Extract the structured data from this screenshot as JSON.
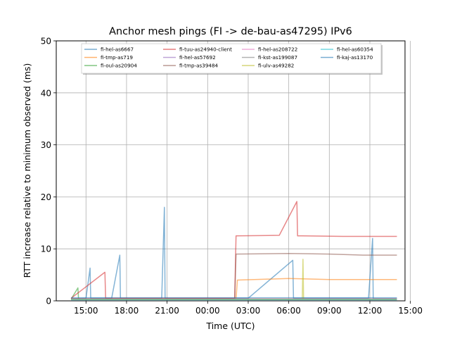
{
  "chart_data": {
    "type": "line",
    "title": "Anchor mesh pings (FI -> de-bau-as47295) IPv6",
    "xlabel": "Time (UTC)",
    "ylabel": "RTT increase relative to minimum observed (ms)",
    "x_unit": "hours after 00:00 UTC on the first day",
    "xlim": [
      12.8,
      38.6
    ],
    "ylim": [
      0,
      50
    ],
    "xticks": [
      {
        "value": 15,
        "label": "15:00"
      },
      {
        "value": 18,
        "label": "18:00"
      },
      {
        "value": 21,
        "label": "21:00"
      },
      {
        "value": 24,
        "label": "00:00"
      },
      {
        "value": 27,
        "label": "03:00"
      },
      {
        "value": 30,
        "label": "06:00"
      },
      {
        "value": 33,
        "label": "09:00"
      },
      {
        "value": 36,
        "label": "12:00"
      },
      {
        "value": 39,
        "label": "15:00"
      }
    ],
    "yticks": [
      0,
      10,
      20,
      30,
      40,
      50
    ],
    "grid": true,
    "legend_position": "top-center",
    "legend_columns": 4,
    "series": [
      {
        "name": "fi-hel-as6667",
        "color": "#1f77b4",
        "points": [
          [
            13.9,
            0.4
          ],
          [
            15.0,
            0.5
          ],
          [
            15.3,
            6.3
          ],
          [
            15.35,
            0.5
          ],
          [
            16.9,
            0.5
          ],
          [
            17.5,
            8.8
          ],
          [
            17.55,
            0.5
          ],
          [
            20.6,
            0.5
          ],
          [
            20.8,
            18.0
          ],
          [
            20.85,
            0.5
          ],
          [
            27.0,
            0.5
          ],
          [
            30.3,
            7.8
          ],
          [
            30.35,
            0.5
          ],
          [
            35.9,
            0.5
          ],
          [
            36.2,
            12.0
          ],
          [
            36.25,
            0.4
          ],
          [
            38.0,
            0.4
          ]
        ]
      },
      {
        "name": "fi-tmp-as719",
        "color": "#ff7f0e",
        "points": [
          [
            13.9,
            0.3
          ],
          [
            26.1,
            0.3
          ],
          [
            26.2,
            4.0
          ],
          [
            30.0,
            4.3
          ],
          [
            33.0,
            4.1
          ],
          [
            38.0,
            4.1
          ]
        ]
      },
      {
        "name": "fi-oul-as20904",
        "color": "#2ca02c",
        "points": [
          [
            13.9,
            0.3
          ],
          [
            14.4,
            2.5
          ],
          [
            14.45,
            0.3
          ],
          [
            19.0,
            0.3
          ],
          [
            27.5,
            0.3
          ],
          [
            38.0,
            0.3
          ]
        ]
      },
      {
        "name": "fi-tuu-as24940-client",
        "color": "#d62728",
        "points": [
          [
            13.9,
            0.5
          ],
          [
            16.4,
            5.5
          ],
          [
            16.45,
            0.5
          ],
          [
            26.0,
            0.5
          ],
          [
            26.1,
            12.5
          ],
          [
            29.3,
            12.6
          ],
          [
            30.6,
            19.1
          ],
          [
            30.65,
            12.5
          ],
          [
            31.0,
            12.5
          ],
          [
            34.0,
            12.4
          ],
          [
            38.0,
            12.4
          ]
        ]
      },
      {
        "name": "fi-hel-as57692",
        "color": "#9467bd",
        "points": [
          [
            13.9,
            0.3
          ],
          [
            38.0,
            0.3
          ]
        ]
      },
      {
        "name": "fi-tmp-as39484",
        "color": "#8c564b",
        "points": [
          [
            13.9,
            0.4
          ],
          [
            26.0,
            0.4
          ],
          [
            26.1,
            9.0
          ],
          [
            30.0,
            9.1
          ],
          [
            33.0,
            9.0
          ],
          [
            35.5,
            8.8
          ],
          [
            38.0,
            8.8
          ]
        ]
      },
      {
        "name": "fi-hel-as208722",
        "color": "#e377c2",
        "points": [
          [
            13.9,
            0.4
          ],
          [
            23.0,
            0.4
          ],
          [
            25.5,
            0.4
          ],
          [
            38.0,
            0.4
          ]
        ]
      },
      {
        "name": "fi-kst-as199087",
        "color": "#7f7f7f",
        "points": [
          [
            13.9,
            0.3
          ],
          [
            38.0,
            0.3
          ]
        ]
      },
      {
        "name": "fi-ulv-as49282",
        "color": "#bcbd22",
        "points": [
          [
            13.9,
            0.3
          ],
          [
            31.0,
            0.3
          ],
          [
            31.05,
            8.0
          ],
          [
            31.1,
            0.3
          ],
          [
            38.0,
            0.3
          ]
        ]
      },
      {
        "name": "fi-hel-as60354",
        "color": "#17becf",
        "points": [
          [
            13.9,
            0.2
          ],
          [
            38.0,
            0.2
          ]
        ]
      },
      {
        "name": "fi-kaj-as13170",
        "color": "#1f77b4",
        "points": [
          [
            13.9,
            0.6
          ],
          [
            38.0,
            0.6
          ]
        ]
      }
    ]
  }
}
